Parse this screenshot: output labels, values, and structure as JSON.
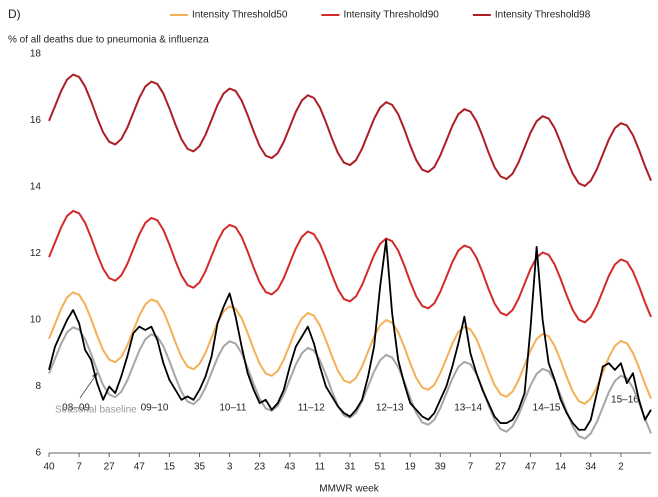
{
  "chart_data": {
    "type": "line",
    "title": "D)",
    "y_label": "% of all deaths due to pneumonia & influenza",
    "x_label": "MMWR week",
    "season_labels": [
      "08–09",
      "09–10",
      "10–11",
      "11–12",
      "12–13",
      "13–14",
      "14–15",
      "15–16"
    ],
    "baseline_label": "Seasonal baseline",
    "legend": "top",
    "grid": false,
    "xlim": [
      0,
      400
    ],
    "xticks": [
      {
        "value": 0,
        "label": "40"
      },
      {
        "value": 20,
        "label": "7"
      },
      {
        "value": 40,
        "label": "27"
      },
      {
        "value": 60,
        "label": "47"
      },
      {
        "value": 80,
        "label": "15"
      },
      {
        "value": 100,
        "label": "35"
      },
      {
        "value": 120,
        "label": "3"
      },
      {
        "value": 140,
        "label": "23"
      },
      {
        "value": 160,
        "label": "43"
      },
      {
        "value": 180,
        "label": "11"
      },
      {
        "value": 200,
        "label": "31"
      },
      {
        "value": 220,
        "label": "51"
      },
      {
        "value": 240,
        "label": "19"
      },
      {
        "value": 260,
        "label": "39"
      },
      {
        "value": 280,
        "label": "7"
      },
      {
        "value": 300,
        "label": "27"
      },
      {
        "value": 320,
        "label": "47"
      },
      {
        "value": 340,
        "label": "14"
      },
      {
        "value": 360,
        "label": "34"
      },
      {
        "value": 380,
        "label": "2"
      }
    ],
    "ylim": [
      6,
      18
    ],
    "yticks": [
      6,
      8,
      10,
      12,
      14,
      16,
      18
    ],
    "x": [
      0,
      4,
      8,
      12,
      16,
      20,
      24,
      28,
      32,
      36,
      40,
      44,
      48,
      52,
      56,
      60,
      64,
      68,
      72,
      76,
      80,
      84,
      88,
      92,
      96,
      100,
      104,
      108,
      112,
      116,
      120,
      124,
      128,
      132,
      136,
      140,
      144,
      148,
      152,
      156,
      160,
      164,
      168,
      172,
      176,
      180,
      184,
      188,
      192,
      196,
      200,
      204,
      208,
      212,
      216,
      220,
      224,
      228,
      232,
      236,
      240,
      244,
      248,
      252,
      256,
      260,
      264,
      268,
      272,
      276,
      280,
      284,
      288,
      292,
      296,
      300,
      304,
      308,
      312,
      316,
      320,
      324,
      328,
      332,
      336,
      340,
      344,
      348,
      352,
      356,
      360,
      364,
      368,
      372,
      376,
      380,
      384,
      388,
      392,
      396,
      400
    ],
    "series": [
      {
        "name": "Intensity Threshold50",
        "color": "#f4b057",
        "legend": true,
        "values": [
          9.44,
          9.88,
          10.33,
          10.68,
          10.83,
          10.76,
          10.47,
          10.03,
          9.53,
          9.09,
          8.81,
          8.73,
          8.89,
          9.23,
          9.68,
          10.13,
          10.47,
          10.62,
          10.55,
          10.26,
          9.82,
          9.33,
          8.89,
          8.6,
          8.52,
          8.68,
          9.02,
          9.47,
          9.92,
          10.26,
          10.41,
          10.34,
          10.05,
          9.61,
          9.12,
          8.68,
          8.39,
          8.32,
          8.47,
          8.81,
          9.26,
          9.71,
          10.05,
          10.21,
          10.13,
          9.84,
          9.4,
          8.91,
          8.47,
          8.18,
          8.11,
          8.26,
          8.6,
          9.05,
          9.5,
          9.84,
          10.0,
          9.92,
          9.64,
          9.2,
          8.7,
          8.26,
          7.97,
          7.9,
          8.05,
          8.4,
          8.84,
          9.29,
          9.64,
          9.79,
          9.72,
          9.43,
          8.99,
          8.49,
          8.05,
          7.77,
          7.69,
          7.85,
          8.19,
          8.64,
          9.09,
          9.43,
          9.58,
          9.51,
          9.22,
          8.78,
          8.29,
          7.85,
          7.56,
          7.48,
          7.64,
          7.98,
          8.43,
          8.88,
          9.22,
          9.37,
          9.3,
          9.01,
          8.57,
          8.08,
          7.64
        ]
      },
      {
        "name": "Intensity Threshold90",
        "color": "#d42a2a",
        "legend": true,
        "values": [
          11.89,
          12.33,
          12.78,
          13.13,
          13.28,
          13.21,
          12.92,
          12.48,
          11.98,
          11.54,
          11.26,
          11.18,
          11.34,
          11.68,
          12.13,
          12.58,
          12.92,
          13.07,
          13.0,
          12.71,
          12.27,
          11.78,
          11.34,
          11.05,
          10.97,
          11.13,
          11.47,
          11.92,
          12.37,
          12.71,
          12.86,
          12.79,
          12.5,
          12.06,
          11.57,
          11.13,
          10.84,
          10.77,
          10.92,
          11.26,
          11.71,
          12.16,
          12.5,
          12.66,
          12.58,
          12.29,
          11.85,
          11.36,
          10.92,
          10.63,
          10.56,
          10.71,
          11.05,
          11.5,
          11.95,
          12.29,
          12.45,
          12.37,
          12.09,
          11.65,
          11.15,
          10.71,
          10.42,
          10.35,
          10.5,
          10.85,
          11.29,
          11.74,
          12.09,
          12.24,
          12.17,
          11.88,
          11.44,
          10.94,
          10.5,
          10.22,
          10.14,
          10.3,
          10.64,
          11.09,
          11.54,
          11.88,
          12.03,
          11.96,
          11.67,
          11.23,
          10.74,
          10.3,
          10.01,
          9.93,
          10.09,
          10.43,
          10.88,
          11.33,
          11.67,
          11.82,
          11.75,
          11.46,
          11.02,
          10.53,
          10.09
        ]
      },
      {
        "name": "Intensity Threshold98",
        "color": "#ad1f24",
        "legend": true,
        "values": [
          15.99,
          16.43,
          16.88,
          17.23,
          17.38,
          17.31,
          17.02,
          16.58,
          16.08,
          15.64,
          15.36,
          15.28,
          15.44,
          15.78,
          16.23,
          16.68,
          17.02,
          17.17,
          17.1,
          16.81,
          16.37,
          15.88,
          15.44,
          15.15,
          15.07,
          15.23,
          15.57,
          16.02,
          16.47,
          16.81,
          16.96,
          16.89,
          16.6,
          16.16,
          15.67,
          15.23,
          14.94,
          14.87,
          15.02,
          15.36,
          15.81,
          16.26,
          16.6,
          16.76,
          16.68,
          16.39,
          15.95,
          15.46,
          15.02,
          14.73,
          14.66,
          14.81,
          15.15,
          15.6,
          16.05,
          16.39,
          16.55,
          16.47,
          16.19,
          15.75,
          15.25,
          14.81,
          14.52,
          14.45,
          14.6,
          14.95,
          15.39,
          15.84,
          16.19,
          16.34,
          16.27,
          15.98,
          15.54,
          15.04,
          14.6,
          14.32,
          14.24,
          14.4,
          14.74,
          15.19,
          15.64,
          15.98,
          16.13,
          16.06,
          15.77,
          15.33,
          14.84,
          14.4,
          14.11,
          14.03,
          14.19,
          14.53,
          14.98,
          15.43,
          15.77,
          15.92,
          15.85,
          15.56,
          15.12,
          14.63,
          14.19
        ]
      },
      {
        "color": "#a6a6a6",
        "legend": false,
        "values": [
          8.39,
          8.83,
          9.28,
          9.63,
          9.78,
          9.71,
          9.42,
          8.98,
          8.48,
          8.04,
          7.76,
          7.68,
          7.84,
          8.18,
          8.63,
          9.08,
          9.42,
          9.57,
          9.5,
          9.21,
          8.77,
          8.28,
          7.84,
          7.55,
          7.47,
          7.63,
          7.97,
          8.42,
          8.87,
          9.21,
          9.36,
          9.29,
          9.0,
          8.56,
          8.07,
          7.63,
          7.34,
          7.27,
          7.42,
          7.76,
          8.21,
          8.66,
          9.0,
          9.16,
          9.08,
          8.79,
          8.35,
          7.86,
          7.42,
          7.13,
          7.06,
          7.21,
          7.55,
          8.0,
          8.45,
          8.79,
          8.95,
          8.87,
          8.59,
          8.15,
          7.65,
          7.21,
          6.92,
          6.85,
          7.0,
          7.35,
          7.79,
          8.24,
          8.59,
          8.74,
          8.67,
          8.38,
          7.94,
          7.44,
          7.0,
          6.72,
          6.64,
          6.8,
          7.14,
          7.59,
          8.04,
          8.38,
          8.53,
          8.46,
          8.17,
          7.73,
          7.24,
          6.8,
          6.51,
          6.43,
          6.59,
          6.93,
          7.38,
          7.83,
          8.17,
          8.32,
          8.25,
          7.96,
          7.52,
          7.03,
          6.59
        ]
      },
      {
        "color": "#000000",
        "legend": false,
        "values": [
          8.5,
          9.2,
          9.6,
          10.0,
          10.3,
          9.9,
          9.1,
          8.8,
          8.1,
          7.6,
          8.0,
          7.8,
          8.3,
          8.9,
          9.6,
          9.8,
          9.7,
          9.8,
          9.4,
          8.7,
          8.2,
          7.9,
          7.6,
          7.7,
          7.6,
          7.9,
          8.3,
          8.9,
          9.9,
          10.4,
          10.8,
          10.1,
          9.2,
          8.4,
          7.9,
          7.5,
          7.6,
          7.3,
          7.5,
          7.9,
          8.6,
          9.2,
          9.5,
          9.8,
          9.3,
          8.6,
          8.0,
          7.7,
          7.4,
          7.2,
          7.1,
          7.3,
          7.6,
          8.3,
          9.2,
          11.0,
          12.4,
          10.2,
          8.8,
          8.1,
          7.5,
          7.3,
          7.1,
          7.0,
          7.2,
          7.6,
          8.0,
          8.6,
          9.3,
          10.1,
          9.0,
          8.4,
          7.9,
          7.5,
          7.1,
          6.9,
          6.9,
          7.0,
          7.3,
          7.8,
          9.8,
          12.2,
          10.0,
          8.7,
          8.2,
          7.6,
          7.2,
          6.9,
          6.7,
          6.7,
          7.0,
          7.8,
          8.6,
          8.7,
          8.5,
          8.7,
          8.1,
          8.4,
          7.6,
          7.0,
          7.3
        ]
      }
    ]
  }
}
